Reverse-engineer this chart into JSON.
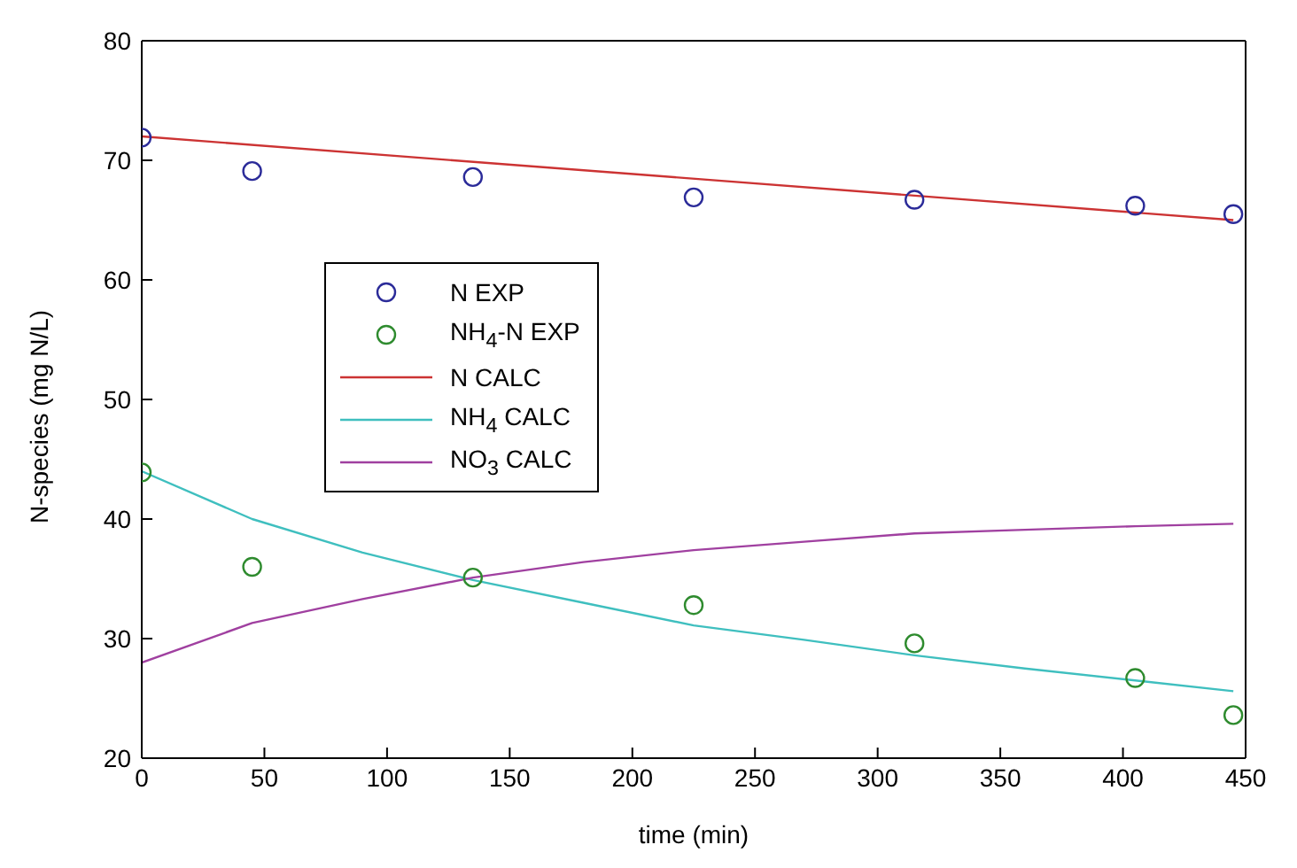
{
  "chart_data": {
    "type": "line",
    "xlabel": "time (min)",
    "ylabel": "N-species (mg N/L)",
    "xlim": [
      0,
      450
    ],
    "xticks": [
      0,
      50,
      100,
      150,
      200,
      250,
      300,
      350,
      400,
      450
    ],
    "ylim": [
      20,
      80
    ],
    "yticks": [
      20,
      30,
      40,
      50,
      60,
      70,
      80
    ],
    "grid": false,
    "legend": "left",
    "series": [
      {
        "name": "N EXP",
        "type": "scatter",
        "marker": "circle",
        "color": "#2b2b99",
        "x": [
          0,
          45,
          135,
          225,
          315,
          405,
          445
        ],
        "values": [
          71.9,
          69.1,
          68.6,
          66.9,
          66.7,
          66.2,
          65.5
        ]
      },
      {
        "name": "NH$_{4}$-N EXP",
        "type": "scatter",
        "marker": "circle",
        "color": "#2e8b2e",
        "x": [
          0,
          45,
          135,
          225,
          315,
          405,
          445
        ],
        "values": [
          43.9,
          36,
          35.1,
          32.8,
          29.6,
          26.7,
          23.6
        ]
      },
      {
        "name": "N CALC",
        "marker": "none",
        "color": "#cc3333",
        "x": [
          0,
          445
        ],
        "values": [
          72,
          65
        ]
      },
      {
        "name": "NH$_{4}$ CALC",
        "marker": "none",
        "color": "#3fbfbf",
        "x": [
          0,
          45,
          90,
          135,
          180,
          225,
          270,
          315,
          360,
          405,
          445
        ],
        "values": [
          44,
          40,
          37.2,
          34.9,
          33,
          31.1,
          29.9,
          28.6,
          27.5,
          26.5,
          25.6
        ]
      },
      {
        "name": "NO$_{3}$ CALC",
        "marker": "none",
        "color": "#a040a0",
        "x": [
          0,
          45,
          90,
          135,
          180,
          225,
          270,
          315,
          360,
          405,
          445
        ],
        "values": [
          28,
          31.3,
          33.3,
          35.1,
          36.4,
          37.4,
          38.1,
          38.8,
          39.1,
          39.4,
          39.6
        ]
      }
    ]
  }
}
